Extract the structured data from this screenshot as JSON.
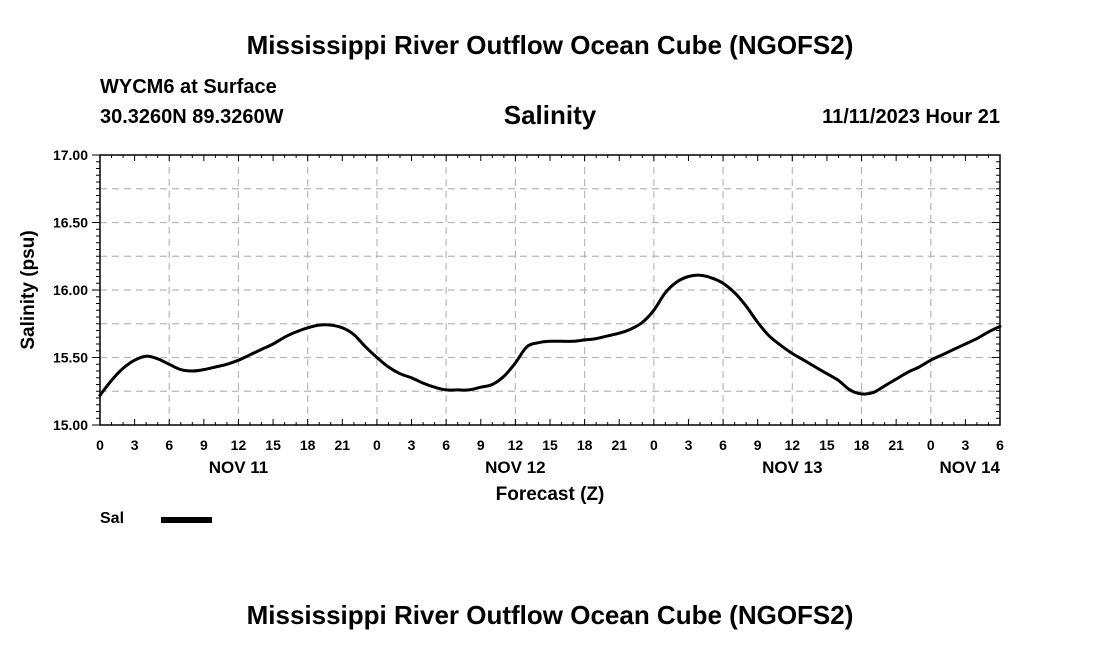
{
  "header": {
    "main_title": "Mississippi River Outflow Ocean Cube (NGOFS2)",
    "station": "WYCM6 at Surface",
    "coordinates": "30.3260N  89.3260W",
    "variable_title": "Salinity",
    "datetime": "11/11/2023 Hour 21"
  },
  "legend": {
    "label": "Sal"
  },
  "footer": {
    "title": "Mississippi River Outflow Ocean Cube (NGOFS2)"
  },
  "chart_data": {
    "type": "line",
    "title": "Salinity",
    "xlabel": "Forecast (Z)",
    "ylabel": "Salinity (psu)",
    "xlim": [
      0,
      78
    ],
    "ylim": [
      15.0,
      17.0
    ],
    "yticks": [
      "15.00",
      "15.50",
      "16.00",
      "16.50",
      "17.00"
    ],
    "xtick_labels": [
      "0",
      "3",
      "6",
      "9",
      "12",
      "15",
      "18",
      "21",
      "0",
      "3",
      "6",
      "9",
      "12",
      "15",
      "18",
      "21",
      "0",
      "3",
      "6",
      "9",
      "12",
      "15",
      "18",
      "21",
      "0",
      "3",
      "6"
    ],
    "day_labels": [
      {
        "label": "NOV 11",
        "hour": 12
      },
      {
        "label": "NOV 12",
        "hour": 36
      },
      {
        "label": "NOV 13",
        "hour": 60
      },
      {
        "label": "NOV 14",
        "hour": 78
      }
    ],
    "grid": true,
    "series": [
      {
        "name": "Sal",
        "x": [
          0,
          1,
          2,
          3,
          4,
          5,
          6,
          7,
          8,
          9,
          10,
          11,
          12,
          13,
          14,
          15,
          16,
          17,
          18,
          19,
          20,
          21,
          22,
          23,
          24,
          25,
          26,
          27,
          28,
          29,
          30,
          31,
          32,
          33,
          34,
          35,
          36,
          37,
          38,
          39,
          40,
          41,
          42,
          43,
          44,
          45,
          46,
          47,
          48,
          49,
          50,
          51,
          52,
          53,
          54,
          55,
          56,
          57,
          58,
          59,
          60,
          61,
          62,
          63,
          64,
          65,
          66,
          67,
          68,
          69,
          70,
          71,
          72,
          73,
          74,
          75,
          76,
          77,
          78
        ],
        "values": [
          15.22,
          15.33,
          15.42,
          15.48,
          15.51,
          15.49,
          15.45,
          15.41,
          15.4,
          15.41,
          15.43,
          15.45,
          15.48,
          15.52,
          15.56,
          15.6,
          15.65,
          15.69,
          15.72,
          15.74,
          15.74,
          15.72,
          15.67,
          15.58,
          15.5,
          15.43,
          15.38,
          15.35,
          15.31,
          15.28,
          15.26,
          15.26,
          15.26,
          15.28,
          15.3,
          15.36,
          15.46,
          15.58,
          15.61,
          15.62,
          15.62,
          15.62,
          15.63,
          15.64,
          15.66,
          15.68,
          15.71,
          15.76,
          15.85,
          15.98,
          16.06,
          16.1,
          16.11,
          16.09,
          16.05,
          15.98,
          15.88,
          15.76,
          15.66,
          15.59,
          15.53,
          15.48,
          15.43,
          15.38,
          15.33,
          15.26,
          15.23,
          15.24,
          15.29,
          15.34,
          15.39,
          15.43,
          15.48,
          15.52,
          15.56,
          15.6,
          15.64,
          15.69,
          15.73
        ]
      }
    ]
  }
}
